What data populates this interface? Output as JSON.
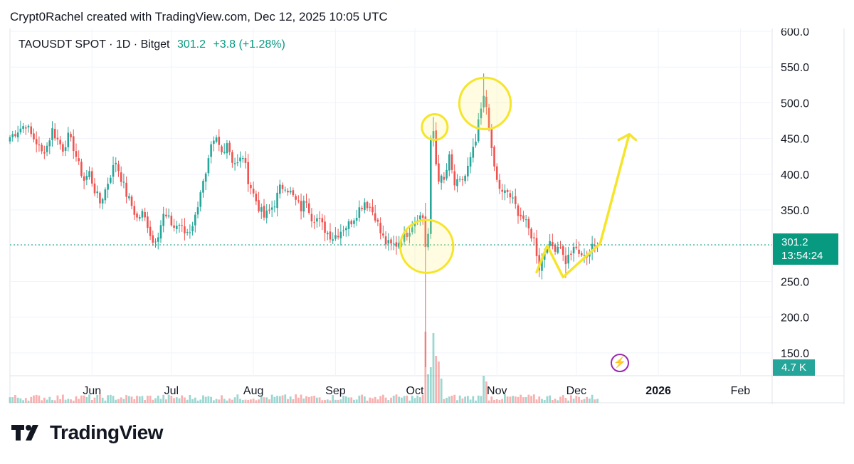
{
  "caption": "Crypt0Rachel created with TradingView.com, Dec 12, 2025 10:05 UTC",
  "legend": {
    "symbol": "TAOUSDT SPOT · 1D · Bitget",
    "price": "301.2",
    "change": "+3.8 (+1.28%)"
  },
  "price_tag": {
    "price": "301.2",
    "countdown": "13:54:24"
  },
  "volume_tag": "4.7 K",
  "flash_icon": "lightning-icon",
  "brand": "TradingView",
  "colors": {
    "up": "#26a69a",
    "down": "#ef5350",
    "last_price": "#089981",
    "annotation": "#f5e52a",
    "flash": "#9c27b0"
  },
  "chart_data": {
    "type": "candlestick",
    "y_axis": {
      "min": 118,
      "max": 604,
      "ticks": [
        "600.0",
        "550.0",
        "500.0",
        "450.0",
        "400.0",
        "350.0",
        "300.0",
        "250.0",
        "200.0",
        "150.0"
      ],
      "tick_values": [
        600,
        550,
        500,
        450,
        400,
        350,
        300,
        250,
        200,
        150
      ],
      "side": "right"
    },
    "x_axis": {
      "labels": [
        "Jun",
        "Jul",
        "Aug",
        "Sep",
        "Oct",
        "Nov",
        "Dec",
        "2026",
        "Feb"
      ],
      "label_days": [
        31,
        61,
        92,
        123,
        153,
        184,
        214,
        245,
        276
      ],
      "bold": [
        "2026"
      ],
      "day_min": 0,
      "day_max": 288,
      "note": "days counted from May 1, 2025"
    },
    "last_price": 301.2,
    "last_price_line": "dotted",
    "anchors": [
      [
        0,
        452
      ],
      [
        3,
        462
      ],
      [
        6,
        470
      ],
      [
        8,
        455
      ],
      [
        10,
        445
      ],
      [
        12,
        430
      ],
      [
        14,
        440
      ],
      [
        16,
        462
      ],
      [
        18,
        448
      ],
      [
        20,
        436
      ],
      [
        22,
        452
      ],
      [
        24,
        438
      ],
      [
        26,
        412
      ],
      [
        28,
        392
      ],
      [
        30,
        402
      ],
      [
        32,
        378
      ],
      [
        34,
        360
      ],
      [
        36,
        378
      ],
      [
        38,
        400
      ],
      [
        40,
        418
      ],
      [
        42,
        395
      ],
      [
        44,
        372
      ],
      [
        46,
        356
      ],
      [
        48,
        338
      ],
      [
        50,
        345
      ],
      [
        52,
        330
      ],
      [
        54,
        305
      ],
      [
        56,
        318
      ],
      [
        58,
        342
      ],
      [
        60,
        336
      ],
      [
        62,
        326
      ],
      [
        64,
        330
      ],
      [
        66,
        318
      ],
      [
        68,
        322
      ],
      [
        70,
        340
      ],
      [
        72,
        378
      ],
      [
        74,
        396
      ],
      [
        76,
        436
      ],
      [
        78,
        448
      ],
      [
        80,
        430
      ],
      [
        82,
        446
      ],
      [
        84,
        420
      ],
      [
        86,
        414
      ],
      [
        88,
        426
      ],
      [
        90,
        393
      ],
      [
        92,
        372
      ],
      [
        94,
        354
      ],
      [
        96,
        340
      ],
      [
        98,
        348
      ],
      [
        100,
        360
      ],
      [
        102,
        380
      ],
      [
        104,
        385
      ],
      [
        106,
        374
      ],
      [
        108,
        362
      ],
      [
        110,
        352
      ],
      [
        112,
        365
      ],
      [
        114,
        340
      ],
      [
        116,
        338
      ],
      [
        118,
        328
      ],
      [
        120,
        318
      ],
      [
        122,
        312
      ],
      [
        124,
        318
      ],
      [
        126,
        325
      ],
      [
        128,
        330
      ],
      [
        130,
        340
      ],
      [
        132,
        352
      ],
      [
        134,
        362
      ],
      [
        136,
        354
      ],
      [
        138,
        342
      ],
      [
        140,
        318
      ],
      [
        142,
        304
      ],
      [
        144,
        300
      ],
      [
        146,
        302
      ],
      [
        148,
        310
      ],
      [
        150,
        318
      ],
      [
        152,
        330
      ],
      [
        154,
        342
      ],
      [
        156,
        340
      ],
      [
        157,
        300
      ],
      [
        158,
        316
      ],
      [
        159,
        445
      ],
      [
        160,
        460
      ],
      [
        161,
        415
      ],
      [
        162,
        395
      ],
      [
        164,
        390
      ],
      [
        166,
        422
      ],
      [
        168,
        385
      ],
      [
        170,
        388
      ],
      [
        172,
        398
      ],
      [
        174,
        420
      ],
      [
        176,
        445
      ],
      [
        177,
        470
      ],
      [
        178,
        490
      ],
      [
        179,
        505
      ],
      [
        180,
        495
      ],
      [
        181,
        470
      ],
      [
        182,
        430
      ],
      [
        183,
        410
      ],
      [
        184,
        390
      ],
      [
        186,
        372
      ],
      [
        188,
        375
      ],
      [
        190,
        362
      ],
      [
        192,
        348
      ],
      [
        194,
        338
      ],
      [
        196,
        322
      ],
      [
        198,
        308
      ],
      [
        199,
        290
      ],
      [
        200,
        270
      ],
      [
        201,
        282
      ],
      [
        202,
        292
      ],
      [
        203,
        306
      ],
      [
        204,
        300
      ],
      [
        206,
        298
      ],
      [
        208,
        302
      ],
      [
        209,
        285
      ],
      [
        210,
        278
      ],
      [
        212,
        290
      ],
      [
        214,
        295
      ],
      [
        215,
        290
      ],
      [
        216,
        282
      ],
      [
        217,
        291
      ],
      [
        218,
        286
      ],
      [
        220,
        297
      ],
      [
        222,
        301.2
      ]
    ],
    "big_wicks": [
      {
        "day": 157,
        "low": 130,
        "high": 360
      },
      {
        "day": 159,
        "high": 448
      },
      {
        "day": 160,
        "high": 480
      },
      {
        "day": 179,
        "high": 541
      },
      {
        "day": 180,
        "high": 518
      },
      {
        "day": 200,
        "low": 258
      },
      {
        "day": 210,
        "low": 255
      }
    ],
    "volume_spikes": [
      {
        "day": 157,
        "level": 1.0
      },
      {
        "day": 158,
        "level": 0.4
      },
      {
        "day": 159,
        "level": 0.5
      },
      {
        "day": 160,
        "level": 0.98
      },
      {
        "day": 161,
        "level": 0.66
      },
      {
        "day": 162,
        "level": 0.58
      },
      {
        "day": 163,
        "level": 0.34
      },
      {
        "day": 179,
        "level": 0.38
      },
      {
        "day": 180,
        "level": 0.3
      }
    ],
    "annotations": {
      "circles": [
        {
          "day": 160.5,
          "price": 466,
          "radius_price": 18
        },
        {
          "day": 179.5,
          "price": 499,
          "radius_price": 36
        },
        {
          "day": 157.5,
          "price": 299,
          "radius_price": 37
        }
      ],
      "path": [
        [
          199,
          263
        ],
        [
          203,
          300
        ],
        [
          209,
          256
        ],
        [
          223,
          303
        ],
        [
          234,
          456
        ]
      ],
      "arrow_head": [
        [
          230,
          448
        ],
        [
          234,
          456
        ],
        [
          236.5,
          448
        ]
      ]
    }
  }
}
